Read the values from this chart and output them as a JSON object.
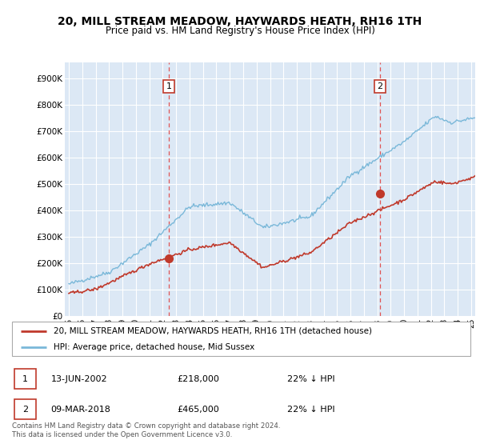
{
  "title": "20, MILL STREAM MEADOW, HAYWARDS HEATH, RH16 1TH",
  "subtitle": "Price paid vs. HM Land Registry's House Price Index (HPI)",
  "title_fontsize": 10,
  "subtitle_fontsize": 8.5,
  "ylabel_ticks": [
    "£0",
    "£100K",
    "£200K",
    "£300K",
    "£400K",
    "£500K",
    "£600K",
    "£700K",
    "£800K",
    "£900K"
  ],
  "ytick_values": [
    0,
    100000,
    200000,
    300000,
    400000,
    500000,
    600000,
    700000,
    800000,
    900000
  ],
  "ylim": [
    0,
    960000
  ],
  "xlim_start": 1994.7,
  "xlim_end": 2025.3,
  "xtick_labels": [
    "95",
    "96",
    "97",
    "98",
    "99",
    "00",
    "01",
    "02",
    "03",
    "04",
    "05",
    "06",
    "07",
    "08",
    "09",
    "10",
    "11",
    "12",
    "13",
    "14",
    "15",
    "16",
    "17",
    "18",
    "19",
    "20",
    "21",
    "22",
    "23",
    "24",
    "25"
  ],
  "xticks": [
    1995,
    1996,
    1997,
    1998,
    1999,
    2000,
    2001,
    2002,
    2003,
    2004,
    2005,
    2006,
    2007,
    2008,
    2009,
    2010,
    2011,
    2012,
    2013,
    2014,
    2015,
    2016,
    2017,
    2018,
    2019,
    2020,
    2021,
    2022,
    2023,
    2024,
    2025
  ],
  "hpi_color": "#7ab8d9",
  "price_color": "#c0392b",
  "vline_color": "#e05555",
  "bg_color": "#ffffff",
  "plot_bg_color": "#dce8f5",
  "grid_color": "#ffffff",
  "legend_label_price": "20, MILL STREAM MEADOW, HAYWARDS HEATH, RH16 1TH (detached house)",
  "legend_label_hpi": "HPI: Average price, detached house, Mid Sussex",
  "sale1_x": 2002.45,
  "sale1_y": 218000,
  "sale2_x": 2018.18,
  "sale2_y": 465000,
  "table_data": [
    [
      "1",
      "13-JUN-2002",
      "£218,000",
      "22% ↓ HPI"
    ],
    [
      "2",
      "09-MAR-2018",
      "£465,000",
      "22% ↓ HPI"
    ]
  ],
  "footer_text": "Contains HM Land Registry data © Crown copyright and database right 2024.\nThis data is licensed under the Open Government Licence v3.0."
}
